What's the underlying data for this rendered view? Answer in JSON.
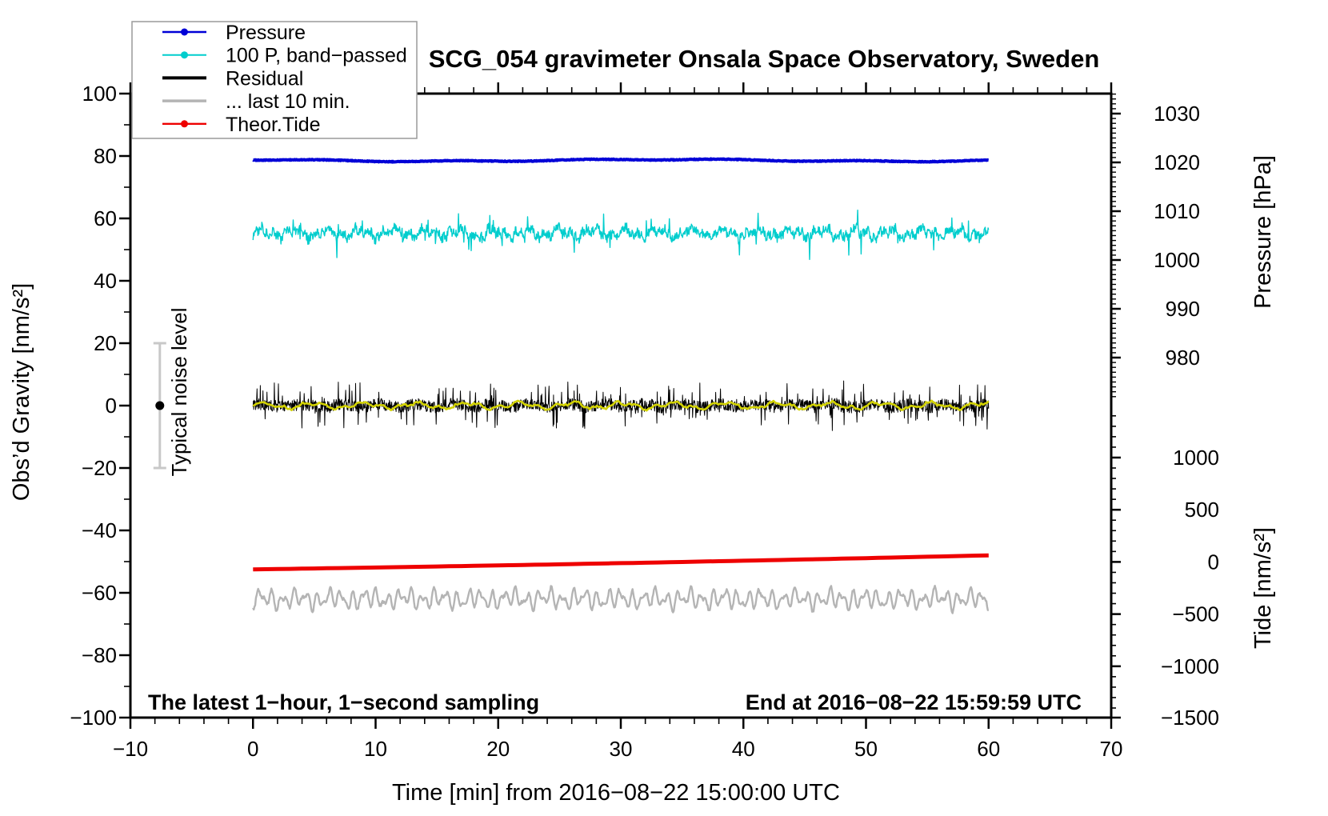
{
  "title": "SCG_054 gravimeter Onsala Space Observatory, Sweden",
  "annotations": {
    "sampling_note": "The latest 1−hour, 1−second sampling",
    "end_time_note": "End at 2016−08−22 15:59:59 UTC",
    "noise_bar_label": "Typical noise level"
  },
  "legend": {
    "position": "top-left",
    "items": [
      {
        "label": "Pressure",
        "color": "#0000d7",
        "marker": "dot",
        "line_width": 2.4
      },
      {
        "label": "100 P, band−passed",
        "color": "#00cdcd",
        "marker": "dot",
        "line_width": 2.0
      },
      {
        "label": "Residual",
        "color": "#000000",
        "marker": "none",
        "line_width": 4.0
      },
      {
        "label": "... last 10 min.",
        "color": "#b4b4b4",
        "marker": "none",
        "line_width": 3.5
      },
      {
        "label": "Theor.Tide",
        "color": "#ee0000",
        "marker": "dot",
        "line_width": 2.4
      }
    ]
  },
  "chart_data": {
    "type": "line",
    "grid": false,
    "xlabel": "Time [min] from 2016−08−22 15:00:00 UTC",
    "x_range_minutes": [
      -10,
      70
    ],
    "data_span_minutes": [
      0,
      60
    ],
    "axes": {
      "x": {
        "label": "Time [min] from 2016−08−22 15:00:00 UTC",
        "major_ticks": [
          {
            "v": -10,
            "label": "−10"
          },
          {
            "v": 0,
            "label": "0"
          },
          {
            "v": 10,
            "label": "10"
          },
          {
            "v": 20,
            "label": "20"
          },
          {
            "v": 30,
            "label": "30"
          },
          {
            "v": 40,
            "label": "40"
          },
          {
            "v": 50,
            "label": "50"
          },
          {
            "v": 60,
            "label": "60"
          },
          {
            "v": 70,
            "label": "70"
          }
        ],
        "minor_step": 2
      },
      "y_left": {
        "label": "Obs’d Gravity [nm/s²]",
        "range": [
          -100,
          100
        ],
        "major_ticks": [
          {
            "v": 100,
            "label": "100"
          },
          {
            "v": 80,
            "label": "80"
          },
          {
            "v": 60,
            "label": "60"
          },
          {
            "v": 40,
            "label": "40"
          },
          {
            "v": 20,
            "label": "20"
          },
          {
            "v": 0,
            "label": "0"
          },
          {
            "v": -20,
            "label": "−20"
          },
          {
            "v": -40,
            "label": "−40"
          },
          {
            "v": -60,
            "label": "−60"
          },
          {
            "v": -80,
            "label": "−80"
          },
          {
            "v": -100,
            "label": "−100"
          }
        ],
        "minor_step": 10
      },
      "y_right_top": {
        "label": "Pressure [hPa]",
        "major_ticks": [
          {
            "v": 1030,
            "label": "1030"
          },
          {
            "v": 1020,
            "label": "1020"
          },
          {
            "v": 1010,
            "label": "1010"
          },
          {
            "v": 1000,
            "label": "1000"
          },
          {
            "v": 990,
            "label": "990"
          },
          {
            "v": 980,
            "label": "980"
          }
        ],
        "minor_step": 1,
        "minor_range": [
          972,
          1034
        ]
      },
      "y_right_bottom": {
        "label": "Tide [nm/s²]",
        "major_ticks": [
          {
            "v": 1000,
            "label": "1000"
          },
          {
            "v": 500,
            "label": "500"
          },
          {
            "v": 0,
            "label": "0"
          },
          {
            "v": -500,
            "label": "−500"
          },
          {
            "v": -1000,
            "label": "−1000"
          },
          {
            "v": -1500,
            "label": "−1500"
          }
        ],
        "minor_step": 100,
        "minor_range": [
          -1400,
          1400
        ]
      }
    },
    "series": [
      {
        "name": "pressure",
        "legend_label": "Pressure",
        "color": "#0000d7",
        "line_width": 4,
        "axis": "pressure-right-top",
        "approx_value_hPa": 1020.5,
        "gravity_axis_position": 78.6,
        "baseline": 78.6,
        "waves": [
          [
            0.3,
            37
          ],
          [
            0.18,
            11
          ]
        ],
        "white": 0.12,
        "sample_step_min": 0.05
      },
      {
        "name": "bandpassed-pressure",
        "legend_label": "100 P, band−passed",
        "color": "#00cdcd",
        "line_width": 1.4,
        "axis": "gravity-left",
        "baseline": 55.3,
        "waves": [
          [
            1.0,
            2.7
          ],
          [
            0.8,
            1.1
          ],
          [
            0.6,
            0.45
          ]
        ],
        "white": 1.5,
        "spikes": [
          0.025,
          2.5,
          3.5
        ],
        "sample_step_min": 0.04
      },
      {
        "name": "residual-last-10-min",
        "legend_label": "... last 10 min.",
        "color": "#b4b4b4",
        "line_width": 2.4,
        "axis": "gravity-left",
        "baseline": -62,
        "waves": [
          [
            2.0,
            0.95
          ],
          [
            1.4,
            0.6
          ],
          [
            0.8,
            2.9
          ]
        ],
        "white": 0.5,
        "sample_step_min": 0.06
      },
      {
        "name": "theoretical-tide",
        "legend_label": "Theor.Tide",
        "color": "#ee0000",
        "line_width": 5,
        "axis": "tide-right-bottom",
        "gravity_axis_start": -52.5,
        "gravity_axis_end": -48.0,
        "baseline": -52.5,
        "slope": 0.0583,
        "quad": 0.00028,
        "sample_step_min": 1
      },
      {
        "name": "residual",
        "legend_label": "Residual",
        "color": "#000000",
        "line_width": 1,
        "axis": "gravity-left",
        "baseline": 0,
        "waves": [
          [
            0.5,
            3.1
          ]
        ],
        "white": 1.9,
        "spikes": [
          0.1,
          1.5,
          5.5
        ],
        "sample_step_min": 0.03
      },
      {
        "name": "residual-smoothed",
        "legend_label": null,
        "color": "#d2d200",
        "line_width": 2.6,
        "axis": "gravity-left",
        "baseline": 0,
        "waves": [
          [
            0.8,
            4.2
          ],
          [
            0.5,
            1.6
          ]
        ],
        "white": 0.35,
        "sample_step_min": 0.15
      }
    ],
    "noise_level_bar": {
      "x_min": -7.6,
      "center_gravity": 0,
      "half_range_gravity": 20,
      "bar_color": "#c8c8c8",
      "dot_color": "#000000",
      "label": "Typical noise level"
    }
  }
}
